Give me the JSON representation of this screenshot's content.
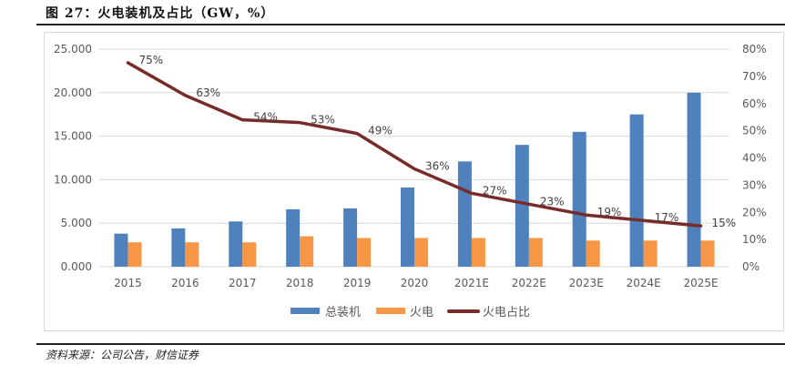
{
  "figure": {
    "title": "图 27：火电装机及占比（GW，%）",
    "source": "资料来源：公司公告，财信证券"
  },
  "colors": {
    "total": "#4f81bd",
    "thermal": "#f79646",
    "share": "#772c2a",
    "grid": "#d9d9d9",
    "axis_text": "#595959"
  },
  "chart_data": {
    "type": "bar",
    "title": "火电装机及占比（GW，%）",
    "categories": [
      "2015",
      "2016",
      "2017",
      "2018",
      "2019",
      "2020",
      "2021E",
      "2022E",
      "2023E",
      "2024E",
      "2025E"
    ],
    "series": [
      {
        "name": "总装机",
        "type": "bar",
        "axis": "left",
        "values": [
          3800,
          4400,
          5200,
          6600,
          6700,
          9100,
          12100,
          14000,
          15500,
          17500,
          20000
        ]
      },
      {
        "name": "火电",
        "type": "bar",
        "axis": "left",
        "values": [
          2800,
          2800,
          2800,
          3500,
          3300,
          3300,
          3300,
          3300,
          3000,
          3000,
          3000
        ]
      },
      {
        "name": "火电占比",
        "type": "line",
        "axis": "right",
        "values": [
          75,
          63,
          54,
          53,
          49,
          36,
          27,
          23,
          19,
          17,
          15
        ],
        "labels": [
          "75%",
          "63%",
          "54%",
          "53%",
          "49%",
          "36%",
          "27%",
          "23%",
          "19%",
          "17%",
          "15%"
        ]
      }
    ],
    "y_left": {
      "ylim": [
        0,
        25000
      ],
      "ticks": [
        0,
        5000,
        10000,
        15000,
        20000,
        25000
      ],
      "tick_labels": [
        "0.000",
        "5.000",
        "10.000",
        "15.000",
        "20.000",
        "25.000"
      ]
    },
    "y_right": {
      "ylim": [
        0,
        80
      ],
      "ticks": [
        0,
        10,
        20,
        30,
        40,
        50,
        60,
        70,
        80
      ],
      "tick_labels": [
        "0%",
        "10%",
        "20%",
        "30%",
        "40%",
        "50%",
        "60%",
        "70%",
        "80%"
      ]
    },
    "xlabel": "",
    "ylabel": "",
    "grid": true,
    "legend": {
      "position": "bottom",
      "entries": [
        "总装机",
        "火电",
        "火电占比"
      ]
    }
  }
}
